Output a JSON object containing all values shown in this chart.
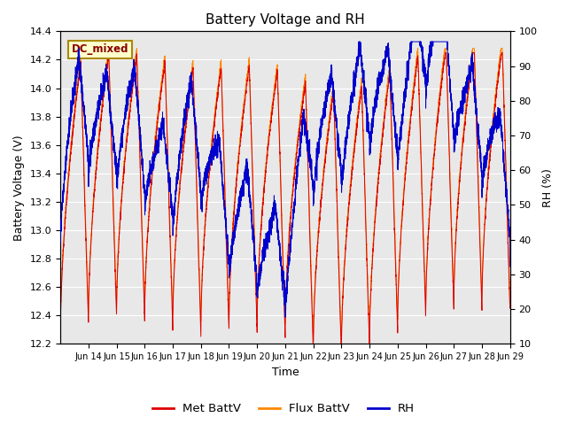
{
  "title": "Battery Voltage and RH",
  "xlabel": "Time",
  "ylabel_left": "Battery Voltage (V)",
  "ylabel_right": "RH (%)",
  "ylim_left": [
    12.2,
    14.4
  ],
  "ylim_right": [
    10,
    100
  ],
  "yticks_left": [
    12.2,
    12.4,
    12.6,
    12.8,
    13.0,
    13.2,
    13.4,
    13.6,
    13.8,
    14.0,
    14.2,
    14.4
  ],
  "yticks_right": [
    10,
    20,
    30,
    40,
    50,
    60,
    70,
    80,
    90,
    100
  ],
  "xtick_labels": [
    "Jun 14",
    "Jun 15",
    "Jun 16",
    "Jun 17",
    "Jun 18",
    "Jun 19",
    "Jun 20",
    "Jun 21",
    "Jun 22",
    "Jun 23",
    "Jun 24",
    "Jun 25",
    "Jun 26",
    "Jun 27",
    "Jun 28",
    "Jun 29"
  ],
  "legend_labels": [
    "Met BattV",
    "Flux BattV",
    "RH"
  ],
  "colors": {
    "met_battv": "#dd0000",
    "flux_battv": "#ff8800",
    "rh": "#0000cc"
  },
  "annotation_text": "DC_mixed",
  "annotation_color": "#880000",
  "annotation_bg": "#ffffcc",
  "annotation_border": "#aa8800",
  "bg_shade_color": "#e8e8e8",
  "grid_color": "#ffffff",
  "n_points": 5000,
  "n_days": 16,
  "figsize": [
    6.4,
    4.8
  ],
  "dpi": 100
}
